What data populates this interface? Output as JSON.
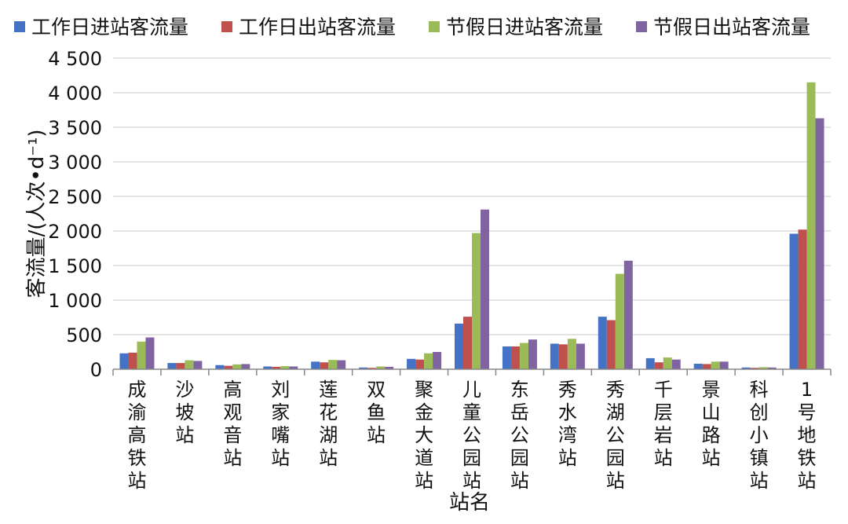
{
  "chart_data": {
    "type": "bar",
    "xlabel": "站名",
    "ylabel": "客流量/(人次•d⁻¹)",
    "ylim": [
      0,
      4500
    ],
    "yticks": [
      0,
      500,
      1000,
      1500,
      2000,
      2500,
      3000,
      3500,
      4000,
      4500
    ],
    "ytick_labels": [
      "0",
      "500",
      "1 000",
      "1 500",
      "2 000",
      "2 500",
      "3 000",
      "3 500",
      "4 000",
      "4 500"
    ],
    "grid": true,
    "legend_position": "top",
    "categories": [
      "成渝高铁站",
      "沙坡站",
      "高观音站",
      "刘家嘴站",
      "莲花湖站",
      "双鱼站",
      "聚金大道站",
      "儿童公园站",
      "东岳公园站",
      "秀水湾站",
      "秀湖公园站",
      "千层岩站",
      "景山路站",
      "科创小镇站",
      "1号地铁站"
    ],
    "series": [
      {
        "name": "工作日进站客流量",
        "color": "#4472C4",
        "values": [
          230,
          90,
          60,
          40,
          110,
          25,
          150,
          660,
          330,
          370,
          760,
          160,
          80,
          25,
          1960
        ]
      },
      {
        "name": "工作日出站客流量",
        "color": "#C0504D",
        "values": [
          240,
          90,
          50,
          35,
          100,
          20,
          140,
          760,
          330,
          360,
          710,
          100,
          75,
          20,
          2020
        ]
      },
      {
        "name": "节假日进站客流量",
        "color": "#9BBB59",
        "values": [
          400,
          130,
          70,
          45,
          135,
          40,
          230,
          1970,
          380,
          440,
          1380,
          170,
          110,
          30,
          4150
        ]
      },
      {
        "name": "节假日出站客流量",
        "color": "#8064A2",
        "values": [
          460,
          120,
          75,
          40,
          130,
          35,
          250,
          2310,
          430,
          370,
          1570,
          140,
          110,
          25,
          3630
        ]
      }
    ]
  }
}
